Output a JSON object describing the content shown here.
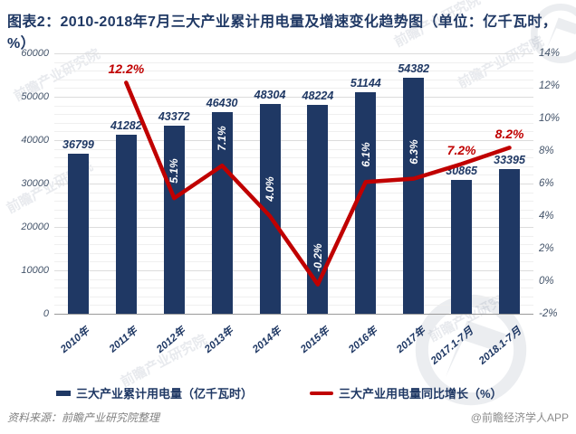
{
  "title": "图表2：2010-2018年7月三大产业累计用电量及增速变化趋势图（单位：亿千瓦时，%）",
  "chart_data": {
    "type": "bar",
    "categories": [
      "2010年",
      "2011年",
      "2012年",
      "2013年",
      "2014年",
      "2015年",
      "2016年",
      "2017年",
      "2017.1-7月",
      "2018.1-7月"
    ],
    "series": [
      {
        "name": "三大产业累计用电量（亿千瓦时）",
        "type": "bar",
        "color": "#1F3864",
        "values": [
          36799,
          41282,
          43372,
          46430,
          48304,
          48224,
          51144,
          54382,
          30865,
          33395
        ]
      },
      {
        "name": "三大产业用电量同比增长（%）",
        "type": "line",
        "color": "#C00000",
        "values": [
          null,
          12.2,
          5.1,
          7.1,
          4.0,
          -0.2,
          6.1,
          6.3,
          7.2,
          8.2
        ],
        "label_positions": [
          "none",
          "above",
          "in-bar",
          "in-bar",
          "in-bar",
          "in-bar",
          "in-bar",
          "in-bar",
          "above",
          "above"
        ]
      }
    ],
    "left_axis": {
      "min": 0,
      "max": 60000,
      "step": 10000,
      "minor_step": 2000,
      "labels": [
        "0",
        "10000",
        "20000",
        "30000",
        "40000",
        "50000",
        "60000"
      ]
    },
    "right_axis": {
      "min": -2,
      "max": 14,
      "step": 2,
      "labels": [
        "-2%",
        "0%",
        "2%",
        "4%",
        "6%",
        "8%",
        "10%",
        "12%",
        "14%"
      ]
    },
    "grid": true,
    "legend_position": "bottom"
  },
  "legend": {
    "bar_label": "三大产业累计用电量（亿千瓦时）",
    "line_label": "三大产业用电量同比增长（%）"
  },
  "footer": {
    "source": "资料来源：前瞻产业研究院整理",
    "credit": "@前瞻经济学人APP"
  },
  "watermark": {
    "text": "前瞻产业研究院"
  },
  "colors": {
    "bar": "#1F3864",
    "line": "#C00000",
    "title": "#1F3864",
    "axis_text": "#44546A",
    "value_label": "#1F3864",
    "growth_label_red": "#C00000",
    "growth_label_white": "#FFFFFF"
  }
}
